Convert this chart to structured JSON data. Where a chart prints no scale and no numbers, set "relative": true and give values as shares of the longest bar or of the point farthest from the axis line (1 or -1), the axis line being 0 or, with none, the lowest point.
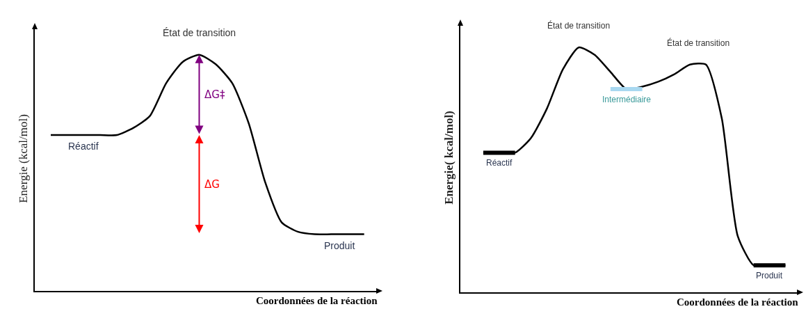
{
  "chart_data": [
    {
      "type": "line",
      "relative": true,
      "xlabel": "Coordonnées de la réaction",
      "ylabel": "Energie (kcal/mol)",
      "categories": [
        null,
        null,
        null,
        null,
        null,
        null,
        null,
        null,
        null,
        null,
        null,
        null,
        null,
        null,
        null,
        null,
        null,
        null,
        null,
        null
      ],
      "series": [
        {
          "color": "#000000",
          "values": [
            0.66,
            0.66,
            0.66,
            0.66,
            0.66,
            0.69,
            0.74,
            0.88,
            0.97,
            1.0,
            0.96,
            0.88,
            0.71,
            0.46,
            0.29,
            0.25,
            0.24,
            0.24,
            0.24,
            0.24
          ]
        }
      ],
      "annotations": [
        {
          "text": "État de transition",
          "y": 1.0
        },
        {
          "text": "Réactif",
          "y": 0.66
        },
        {
          "text": "Produit",
          "y": 0.24
        },
        "ΔG‡",
        "ΔG"
      ]
    },
    {
      "type": "line",
      "relative": true,
      "xlabel": "Coordonnées de la réaction",
      "ylabel": "Energie( kcal/mol)",
      "categories": [
        null,
        null,
        null,
        null,
        null,
        null,
        null,
        null,
        null,
        null,
        null,
        null,
        null,
        null,
        null,
        null,
        null,
        null,
        null,
        null
      ],
      "series": [
        {
          "color": "#000000",
          "values": [
            0.57,
            0.57,
            0.57,
            0.63,
            0.75,
            0.91,
            1.0,
            0.97,
            0.9,
            0.83,
            0.84,
            0.86,
            0.89,
            0.93,
            0.93,
            0.71,
            0.23,
            0.11,
            0.11,
            0.11
          ]
        },
        {
          "color": "#000000",
          "values": [
            0.57,
            0.57,
            0.57,
            null,
            null,
            null,
            null,
            null,
            null,
            null,
            null,
            null,
            null,
            null,
            null,
            null,
            null,
            null,
            null,
            null
          ]
        },
        {
          "color": "#a8d8f0",
          "values": [
            null,
            null,
            null,
            null,
            null,
            null,
            null,
            null,
            0.83,
            0.83,
            0.83,
            null,
            null,
            null,
            null,
            null,
            null,
            null,
            null,
            null
          ]
        },
        {
          "color": "#000000",
          "values": [
            null,
            null,
            null,
            null,
            null,
            null,
            null,
            null,
            null,
            null,
            null,
            null,
            null,
            null,
            null,
            null,
            null,
            0.11,
            0.11,
            0.11
          ]
        }
      ],
      "annotations": [
        {
          "text": "État de transition",
          "y": 1.0
        },
        {
          "text": "État de transition",
          "y": 0.93
        },
        {
          "text": "Intermédiaire",
          "y": 0.83
        },
        {
          "text": "Réactif",
          "y": 0.57
        },
        {
          "text": "Produit",
          "y": 0.11
        }
      ]
    }
  ]
}
